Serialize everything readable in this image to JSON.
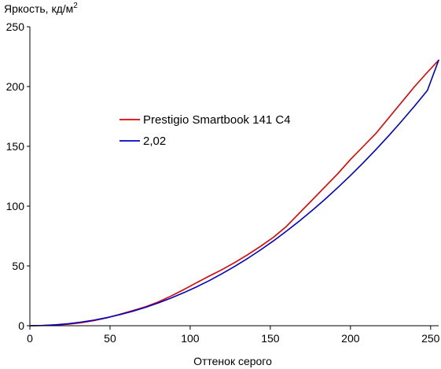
{
  "chart_data": {
    "type": "line",
    "title": "",
    "ylabel": "Яркость, кд/м",
    "ylabel_superscript": "2",
    "xlabel": "Оттенок серого",
    "xlim": [
      0,
      255
    ],
    "ylim": [
      0,
      250
    ],
    "x_ticks": [
      0,
      50,
      100,
      150,
      200,
      250
    ],
    "y_ticks": [
      0,
      50,
      100,
      150,
      200,
      250
    ],
    "grid": false,
    "legend_position": "center-left",
    "series": [
      {
        "name": "Prestigio Smartbook 141 C4",
        "color": "#e00000",
        "points": [
          [
            0,
            0
          ],
          [
            8,
            0.2
          ],
          [
            16,
            0.6
          ],
          [
            24,
            1.3
          ],
          [
            32,
            2.5
          ],
          [
            40,
            4.3
          ],
          [
            48,
            6.6
          ],
          [
            56,
            9.5
          ],
          [
            64,
            12.6
          ],
          [
            72,
            15.8
          ],
          [
            80,
            19.8
          ],
          [
            88,
            24.8
          ],
          [
            96,
            30.2
          ],
          [
            104,
            36.0
          ],
          [
            112,
            41.6
          ],
          [
            120,
            47.0
          ],
          [
            128,
            53.0
          ],
          [
            136,
            59.5
          ],
          [
            144,
            66.5
          ],
          [
            152,
            74.0
          ],
          [
            160,
            83.0
          ],
          [
            168,
            94.0
          ],
          [
            176,
            105.0
          ],
          [
            184,
            116.0
          ],
          [
            192,
            127.0
          ],
          [
            200,
            139.0
          ],
          [
            208,
            150.0
          ],
          [
            216,
            161.0
          ],
          [
            224,
            174.0
          ],
          [
            232,
            187.0
          ],
          [
            240,
            200.0
          ],
          [
            248,
            212.0
          ],
          [
            255,
            222.0
          ]
        ]
      },
      {
        "name": "2,02",
        "color": "#0000c8",
        "points": [
          [
            0,
            0
          ],
          [
            8,
            0.2
          ],
          [
            16,
            0.8
          ],
          [
            24,
            1.7
          ],
          [
            32,
            3.0
          ],
          [
            40,
            4.7
          ],
          [
            48,
            6.8
          ],
          [
            56,
            9.2
          ],
          [
            64,
            12.0
          ],
          [
            72,
            15.3
          ],
          [
            80,
            19.0
          ],
          [
            88,
            23.1
          ],
          [
            96,
            27.6
          ],
          [
            104,
            32.5
          ],
          [
            112,
            37.8
          ],
          [
            120,
            43.6
          ],
          [
            128,
            49.8
          ],
          [
            136,
            56.4
          ],
          [
            144,
            63.5
          ],
          [
            152,
            71.0
          ],
          [
            160,
            79.0
          ],
          [
            168,
            87.4
          ],
          [
            176,
            96.3
          ],
          [
            184,
            105.6
          ],
          [
            192,
            115.4
          ],
          [
            200,
            125.6
          ],
          [
            208,
            136.3
          ],
          [
            216,
            147.5
          ],
          [
            224,
            159.1
          ],
          [
            232,
            171.2
          ],
          [
            240,
            183.7
          ],
          [
            248,
            196.8
          ],
          [
            255,
            222.0
          ]
        ]
      }
    ]
  }
}
